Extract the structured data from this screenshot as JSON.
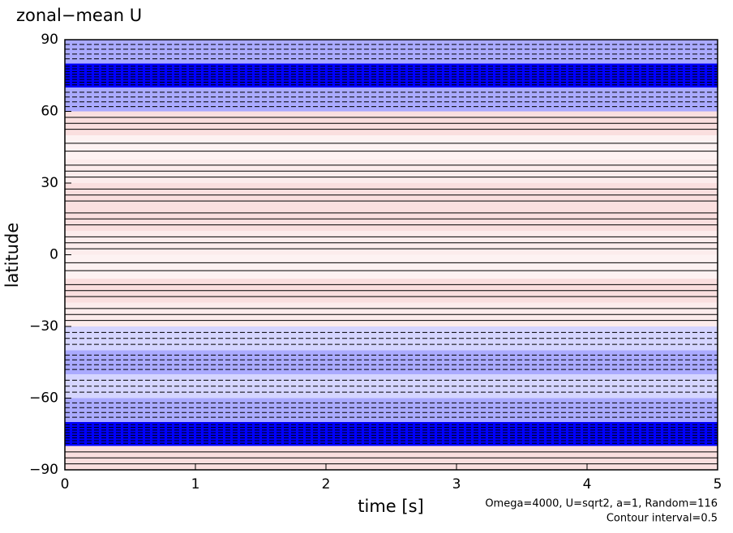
{
  "chart_data": {
    "type": "contour",
    "title": "zonal−mean U",
    "x_label": "time [s]",
    "y_label": "latitude",
    "annotations": [
      "Omega=4000, U=sqrt2, a=1, Random=116",
      "Contour interval=0.5"
    ],
    "xlim": [
      0,
      5
    ],
    "ylim": [
      -90,
      90
    ],
    "xticks": [
      0,
      1,
      2,
      3,
      4,
      5
    ],
    "yticks": [
      {
        "value": -90,
        "label": "−90"
      },
      {
        "value": -60,
        "label": "−60"
      },
      {
        "value": -30,
        "label": "−30"
      },
      0,
      30,
      60,
      90
    ],
    "y": [
      -85,
      -75,
      -65,
      -55,
      -45,
      -35,
      -25,
      -15,
      -5,
      5,
      15,
      25,
      35,
      45,
      55,
      65,
      75,
      85
    ],
    "values": [
      0.5,
      -3,
      -1,
      -0.5,
      -1,
      -0.5,
      0.3,
      0.5,
      0.2,
      0.3,
      0.5,
      0.5,
      0.3,
      0.2,
      0.5,
      -1,
      -3,
      -1
    ],
    "negative_color": "#0000ff",
    "positive_color": "#e04040"
  }
}
